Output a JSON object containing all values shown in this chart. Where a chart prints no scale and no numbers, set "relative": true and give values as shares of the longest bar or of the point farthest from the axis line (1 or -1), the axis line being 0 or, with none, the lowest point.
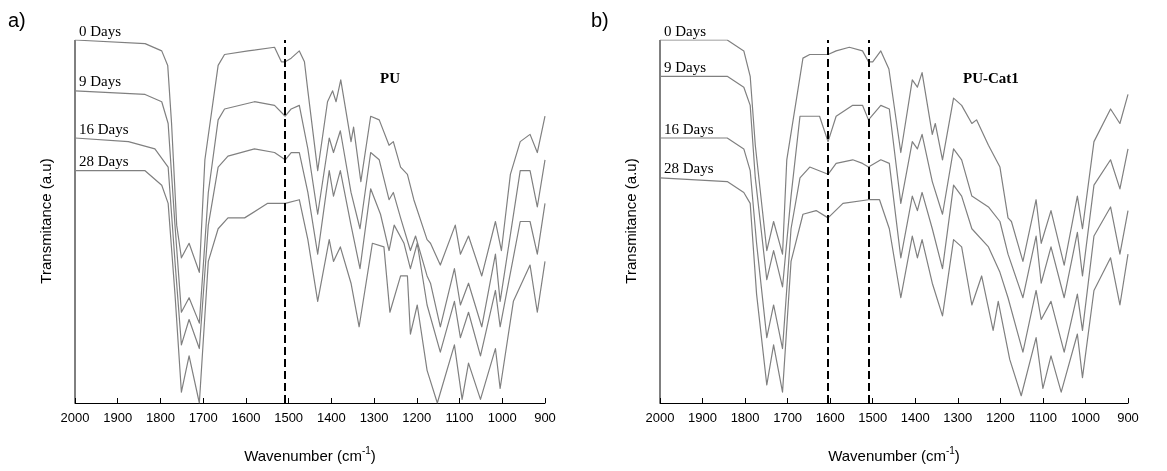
{
  "chart_data": [
    {
      "type": "line",
      "xlabel": "Wavenumber (cm$^{-1}$)",
      "ylabel": "Transmitance (a.u)",
      "annotations": [
        "a)",
        "PU"
      ],
      "relative": true,
      "xlim": [
        2000,
        900
      ],
      "xticks": [
        2000,
        1900,
        1800,
        1700,
        1600,
        1500,
        1400,
        1300,
        1200,
        1100,
        1000,
        900
      ],
      "tick_labels": "x",
      "legend": false,
      "marker": "none",
      "line_style": "solid",
      "ref_lines": [
        {
          "axis": "x",
          "value": 1510,
          "color": "#000000",
          "line_style": "dashed"
        }
      ],
      "series": [
        {
          "name": "0 Days",
          "color": "#808080",
          "x": [
            2000,
            1836,
            1797,
            1783,
            1774,
            1762,
            1751,
            1733,
            1709,
            1696,
            1665,
            1650,
            1595,
            1533,
            1517,
            1508,
            1494,
            1475,
            1463,
            1455,
            1432,
            1409,
            1397,
            1389,
            1378,
            1354,
            1348,
            1331,
            1308,
            1288,
            1265,
            1255,
            1238,
            1222,
            1207,
            1176,
            1168,
            1145,
            1110,
            1098,
            1079,
            1048,
            1016,
            1002,
            981,
            958,
            935,
            918,
            900
          ],
          "values": [
            1.0,
            0.99,
            0.97,
            0.93,
            0.77,
            0.49,
            0.4,
            0.44,
            0.36,
            0.67,
            0.93,
            0.96,
            0.97,
            0.98,
            0.94,
            0.94,
            0.95,
            0.97,
            0.94,
            0.86,
            0.64,
            0.83,
            0.86,
            0.83,
            0.89,
            0.72,
            0.76,
            0.61,
            0.79,
            0.78,
            0.71,
            0.72,
            0.65,
            0.63,
            0.56,
            0.45,
            0.44,
            0.38,
            0.49,
            0.41,
            0.46,
            0.35,
            0.5,
            0.42,
            0.63,
            0.72,
            0.74,
            0.69,
            0.79
          ]
        },
        {
          "name": "9 Days",
          "color": "#808080",
          "x": [
            2000,
            1836,
            1797,
            1782,
            1766,
            1751,
            1733,
            1709,
            1688,
            1665,
            1650,
            1580,
            1533,
            1508,
            1494,
            1475,
            1455,
            1432,
            1405,
            1395,
            1379,
            1354,
            1333,
            1308,
            1288,
            1265,
            1255,
            1238,
            1215,
            1203,
            1176,
            1168,
            1145,
            1112,
            1098,
            1079,
            1048,
            1016,
            1005,
            958,
            935,
            918,
            900
          ],
          "values": [
            0.86,
            0.85,
            0.83,
            0.77,
            0.49,
            0.25,
            0.29,
            0.22,
            0.58,
            0.78,
            0.81,
            0.83,
            0.82,
            0.79,
            0.81,
            0.82,
            0.7,
            0.52,
            0.73,
            0.69,
            0.75,
            0.58,
            0.48,
            0.69,
            0.67,
            0.56,
            0.58,
            0.51,
            0.42,
            0.46,
            0.35,
            0.33,
            0.21,
            0.37,
            0.27,
            0.33,
            0.21,
            0.41,
            0.28,
            0.64,
            0.64,
            0.54,
            0.67
          ]
        },
        {
          "name": "16 Days",
          "color": "#808080",
          "x": [
            2000,
            1875,
            1813,
            1782,
            1766,
            1751,
            1733,
            1709,
            1688,
            1665,
            1642,
            1580,
            1533,
            1508,
            1494,
            1475,
            1455,
            1432,
            1405,
            1395,
            1379,
            1354,
            1333,
            1308,
            1285,
            1265,
            1253,
            1230,
            1215,
            1199,
            1176,
            1145,
            1112,
            1098,
            1079,
            1051,
            1016,
            1005,
            958,
            935,
            918,
            900
          ],
          "values": [
            0.73,
            0.72,
            0.7,
            0.65,
            0.39,
            0.16,
            0.23,
            0.15,
            0.49,
            0.65,
            0.68,
            0.7,
            0.69,
            0.67,
            0.69,
            0.69,
            0.58,
            0.41,
            0.64,
            0.57,
            0.64,
            0.49,
            0.37,
            0.59,
            0.52,
            0.42,
            0.49,
            0.44,
            0.37,
            0.44,
            0.27,
            0.14,
            0.28,
            0.18,
            0.25,
            0.13,
            0.31,
            0.21,
            0.5,
            0.5,
            0.41,
            0.55
          ]
        },
        {
          "name": "28 Days",
          "color": "#808080",
          "x": [
            2000,
            1836,
            1797,
            1782,
            1766,
            1751,
            1733,
            1709,
            1688,
            1665,
            1642,
            1603,
            1549,
            1508,
            1475,
            1455,
            1432,
            1405,
            1395,
            1379,
            1354,
            1335,
            1304,
            1277,
            1263,
            1238,
            1222,
            1215,
            1199,
            1176,
            1152,
            1112,
            1094,
            1079,
            1051,
            1016,
            1005,
            974,
            935,
            918,
            900
          ],
          "values": [
            0.64,
            0.64,
            0.6,
            0.55,
            0.3,
            0.03,
            0.13,
            0.0,
            0.39,
            0.48,
            0.51,
            0.51,
            0.55,
            0.55,
            0.56,
            0.45,
            0.28,
            0.45,
            0.39,
            0.43,
            0.33,
            0.21,
            0.44,
            0.43,
            0.25,
            0.35,
            0.35,
            0.19,
            0.27,
            0.09,
            0.0,
            0.16,
            0.01,
            0.11,
            0.01,
            0.15,
            0.04,
            0.28,
            0.38,
            0.25,
            0.39
          ]
        }
      ]
    },
    {
      "type": "line",
      "xlabel": "Wavenumber (cm$^{-1}$)",
      "ylabel": "Transmitance (a.u)",
      "annotations": [
        "b)",
        "PU-Cat1"
      ],
      "relative": true,
      "xlim": [
        2000,
        900
      ],
      "xticks": [
        2000,
        1900,
        1800,
        1700,
        1600,
        1500,
        1400,
        1300,
        1200,
        1100,
        1000,
        900
      ],
      "tick_labels": "x",
      "legend": false,
      "marker": "none",
      "line_style": "solid",
      "ref_lines": [
        {
          "axis": "x",
          "value": 1605,
          "color": "#000000",
          "line_style": "dashed"
        },
        {
          "axis": "x",
          "value": 1510,
          "color": "#000000",
          "line_style": "dashed"
        }
      ],
      "series": [
        {
          "name": "0 Days",
          "color": "#808080",
          "x": [
            2000,
            1842,
            1803,
            1788,
            1776,
            1749,
            1733,
            1712,
            1702,
            1664,
            1648,
            1605,
            1586,
            1555,
            1524,
            1510,
            1500,
            1481,
            1462,
            1434,
            1407,
            1395,
            1384,
            1360,
            1353,
            1336,
            1310,
            1291,
            1267,
            1256,
            1228,
            1201,
            1182,
            1174,
            1147,
            1116,
            1104,
            1081,
            1050,
            1019,
            1007,
            980,
            941,
            919,
            900
          ],
          "values": [
            1.0,
            1.0,
            0.97,
            0.9,
            0.71,
            0.42,
            0.5,
            0.41,
            0.67,
            0.95,
            0.96,
            0.96,
            0.97,
            0.98,
            0.97,
            0.94,
            0.94,
            0.97,
            0.92,
            0.69,
            0.89,
            0.87,
            0.91,
            0.74,
            0.77,
            0.67,
            0.84,
            0.82,
            0.77,
            0.78,
            0.71,
            0.65,
            0.51,
            0.5,
            0.39,
            0.56,
            0.44,
            0.53,
            0.38,
            0.57,
            0.48,
            0.72,
            0.81,
            0.77,
            0.85
          ]
        },
        {
          "name": "9 Days",
          "color": "#808080",
          "x": [
            2000,
            1842,
            1803,
            1788,
            1776,
            1749,
            1733,
            1712,
            1692,
            1671,
            1648,
            1625,
            1605,
            1586,
            1547,
            1524,
            1510,
            1481,
            1461,
            1434,
            1407,
            1395,
            1384,
            1360,
            1336,
            1310,
            1291,
            1267,
            1228,
            1201,
            1182,
            1147,
            1116,
            1104,
            1081,
            1050,
            1019,
            1007,
            980,
            941,
            919,
            900
          ],
          "values": [
            0.9,
            0.9,
            0.87,
            0.82,
            0.62,
            0.34,
            0.42,
            0.32,
            0.57,
            0.79,
            0.79,
            0.79,
            0.72,
            0.79,
            0.82,
            0.82,
            0.78,
            0.82,
            0.81,
            0.55,
            0.72,
            0.7,
            0.74,
            0.61,
            0.52,
            0.7,
            0.67,
            0.57,
            0.54,
            0.5,
            0.41,
            0.29,
            0.46,
            0.33,
            0.43,
            0.29,
            0.47,
            0.35,
            0.6,
            0.67,
            0.59,
            0.7
          ]
        },
        {
          "name": "16 Days",
          "color": "#808080",
          "x": [
            2000,
            1842,
            1803,
            1788,
            1773,
            1749,
            1733,
            1712,
            1692,
            1671,
            1648,
            1605,
            1586,
            1547,
            1524,
            1510,
            1481,
            1461,
            1434,
            1407,
            1395,
            1384,
            1360,
            1336,
            1310,
            1291,
            1267,
            1228,
            1201,
            1182,
            1147,
            1116,
            1104,
            1081,
            1050,
            1019,
            1007,
            980,
            941,
            919,
            900
          ],
          "values": [
            0.73,
            0.73,
            0.7,
            0.64,
            0.44,
            0.18,
            0.27,
            0.15,
            0.48,
            0.62,
            0.65,
            0.63,
            0.66,
            0.67,
            0.66,
            0.65,
            0.67,
            0.66,
            0.4,
            0.57,
            0.53,
            0.58,
            0.48,
            0.37,
            0.6,
            0.57,
            0.48,
            0.43,
            0.36,
            0.29,
            0.14,
            0.31,
            0.23,
            0.28,
            0.14,
            0.3,
            0.2,
            0.46,
            0.54,
            0.41,
            0.53
          ]
        },
        {
          "name": "28 Days",
          "color": "#808080",
          "x": [
            2000,
            1842,
            1803,
            1788,
            1773,
            1749,
            1733,
            1712,
            1692,
            1664,
            1633,
            1605,
            1570,
            1510,
            1484,
            1461,
            1434,
            1407,
            1395,
            1384,
            1360,
            1336,
            1310,
            1291,
            1267,
            1244,
            1217,
            1205,
            1178,
            1151,
            1116,
            1100,
            1081,
            1057,
            1019,
            1007,
            980,
            941,
            919,
            900
          ],
          "values": [
            0.62,
            0.61,
            0.58,
            0.55,
            0.3,
            0.05,
            0.16,
            0.03,
            0.39,
            0.52,
            0.53,
            0.51,
            0.55,
            0.56,
            0.56,
            0.48,
            0.29,
            0.46,
            0.4,
            0.45,
            0.33,
            0.24,
            0.45,
            0.43,
            0.27,
            0.35,
            0.2,
            0.28,
            0.12,
            0.02,
            0.18,
            0.04,
            0.13,
            0.03,
            0.19,
            0.07,
            0.31,
            0.4,
            0.27,
            0.41
          ]
        }
      ]
    }
  ]
}
